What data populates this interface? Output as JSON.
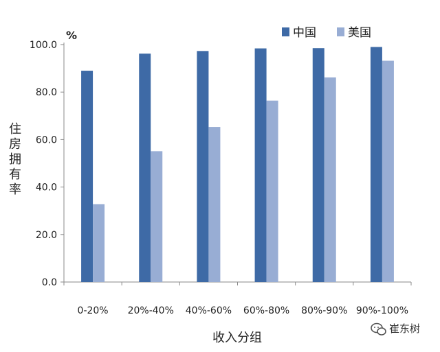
{
  "chart_data": {
    "type": "bar",
    "categories": [
      "0-20%",
      "20%-40%",
      "40%-60%",
      "60%-80%",
      "80%-90%",
      "90%-100%"
    ],
    "series": [
      {
        "name": "中国",
        "values": [
          89.0,
          96.2,
          97.3,
          98.4,
          98.5,
          99.0
        ],
        "color": "#3e6aa6"
      },
      {
        "name": "美国",
        "values": [
          32.8,
          55.1,
          65.3,
          76.4,
          86.2,
          93.2
        ],
        "color": "#98add4"
      }
    ],
    "y_unit": "%",
    "ylabel": "住房拥有率",
    "xlabel": "收入分组",
    "ylim": [
      0,
      100
    ],
    "yticks": [
      "0.0",
      "20.0",
      "40.0",
      "60.0",
      "80.0",
      "100.0"
    ],
    "grid": false,
    "legend_position": "top-right"
  },
  "watermark": {
    "text": "崔东树",
    "icon": "wechat-icon"
  }
}
